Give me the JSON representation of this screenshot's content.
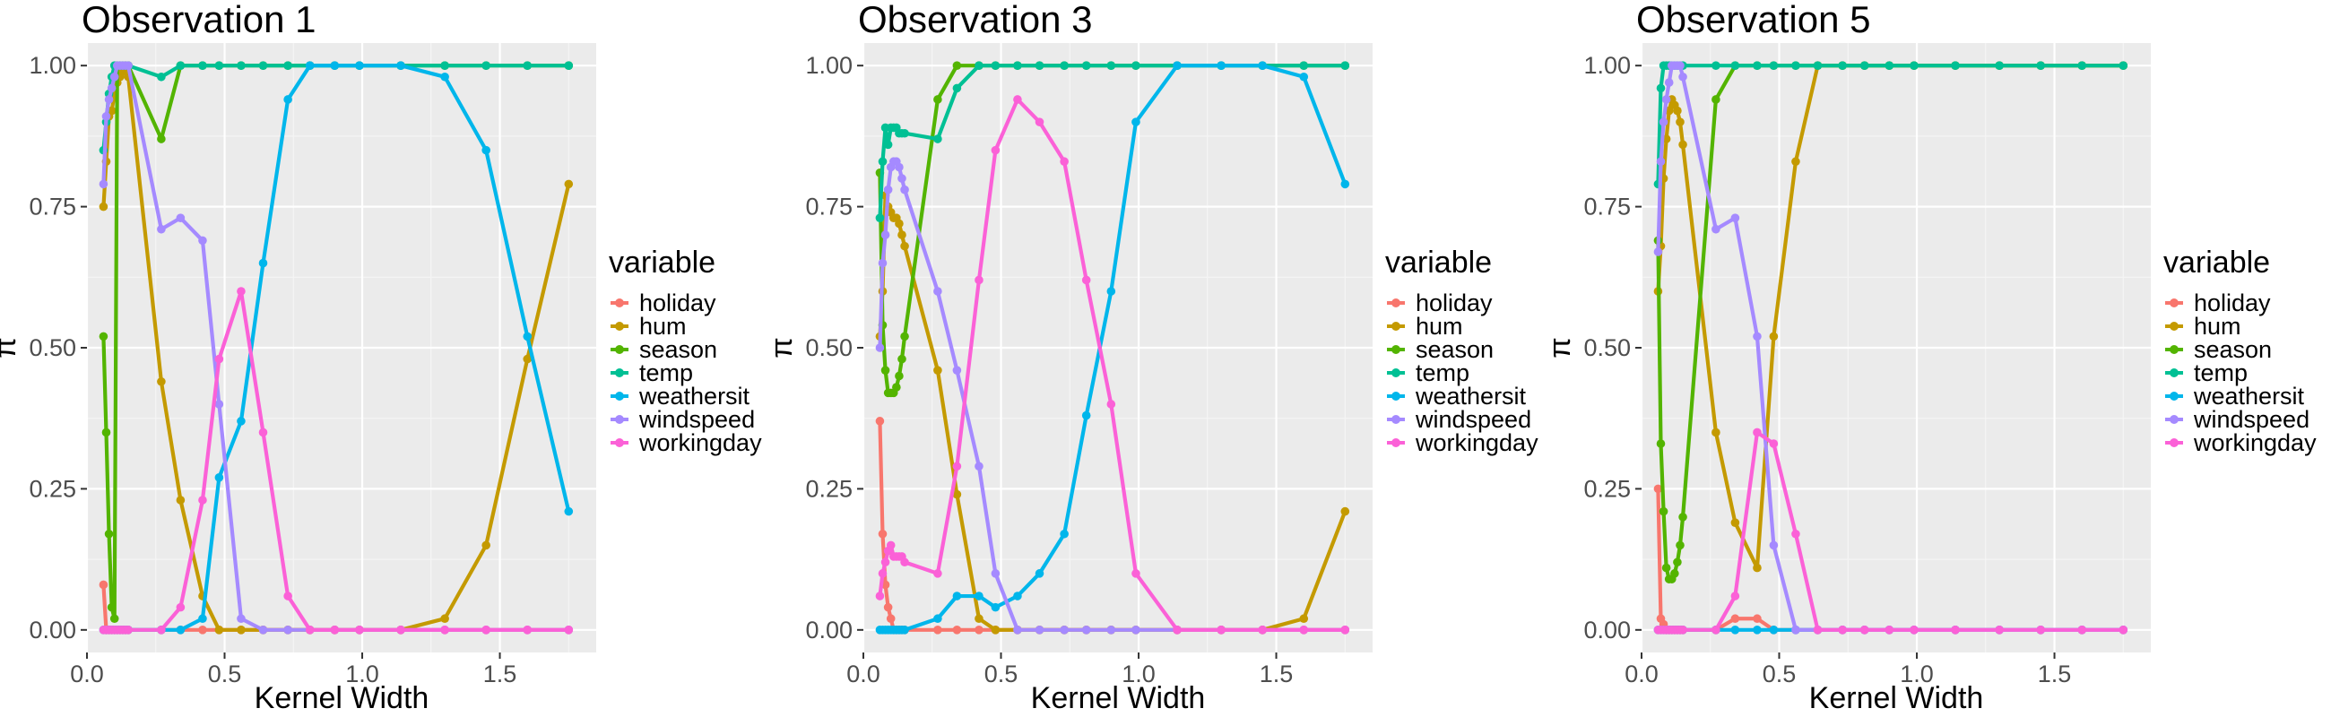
{
  "colors": {
    "panel_bg": "#ebebeb",
    "grid_major": "#ffffff",
    "grid_minor": "#f5f5f5",
    "holiday": "#F8766D",
    "hum": "#C49A00",
    "season": "#53B400",
    "temp": "#00C094",
    "weathersit": "#00B6EB",
    "windspeed": "#A58AFF",
    "workingday": "#FB61D7"
  },
  "chart_data": [
    {
      "type": "line",
      "title": "Observation 1",
      "xlabel": "Kernel Width",
      "ylabel": "π",
      "xlim": [
        0,
        1.85
      ],
      "ylim": [
        -0.04,
        1.04
      ],
      "x_ticks": [
        "0.0",
        "0.5",
        "1.0",
        "1.5"
      ],
      "y_ticks": [
        "0.00",
        "0.25",
        "0.50",
        "0.75",
        "1.00"
      ],
      "legend_title": "variable",
      "legend_position": "right",
      "grid": true,
      "x": [
        0.06,
        0.07,
        0.08,
        0.09,
        0.1,
        0.11,
        0.12,
        0.13,
        0.14,
        0.15,
        0.27,
        0.34,
        0.42,
        0.48,
        0.56,
        0.64,
        0.73,
        0.81,
        0.9,
        0.99,
        1.14,
        1.3,
        1.45,
        1.6,
        1.75
      ],
      "series": [
        {
          "name": "holiday",
          "values": [
            0.08,
            0,
            0,
            0,
            0,
            0,
            0,
            0,
            0,
            0,
            0,
            0,
            0,
            0,
            0,
            0,
            0,
            0,
            0,
            0,
            0,
            0,
            0,
            0,
            0
          ]
        },
        {
          "name": "hum",
          "values": [
            0.75,
            0.83,
            0.91,
            0.92,
            0.95,
            0.97,
            0.98,
            0.99,
            1.0,
            0.98,
            0.44,
            0.23,
            0.06,
            0,
            0,
            0,
            0,
            0,
            0,
            0,
            0,
            0.02,
            0.15,
            0.48,
            0.79
          ]
        },
        {
          "name": "season",
          "values": [
            0.52,
            0.35,
            0.17,
            0.04,
            0.02,
            1.0,
            1.0,
            1.0,
            1.0,
            1.0,
            0.87,
            1.0,
            1.0,
            1.0,
            1.0,
            1.0,
            1.0,
            1.0,
            1.0,
            1.0,
            1.0,
            1.0,
            1.0,
            1.0,
            1.0
          ]
        },
        {
          "name": "temp",
          "values": [
            0.85,
            0.9,
            0.95,
            0.98,
            1.0,
            1.0,
            1.0,
            1.0,
            1.0,
            1.0,
            0.98,
            1.0,
            1.0,
            1.0,
            1.0,
            1.0,
            1.0,
            1.0,
            1.0,
            1.0,
            1.0,
            1.0,
            1.0,
            1.0,
            1.0
          ]
        },
        {
          "name": "weathersit",
          "values": [
            0,
            0,
            0,
            0,
            0,
            0,
            0,
            0,
            0,
            0,
            0,
            0.0,
            0.02,
            0.27,
            0.37,
            0.65,
            0.94,
            1.0,
            1.0,
            1.0,
            1.0,
            0.98,
            0.85,
            0.52,
            0.21
          ]
        },
        {
          "name": "windspeed",
          "values": [
            0.79,
            0.91,
            0.94,
            0.96,
            0.98,
            1.0,
            1.0,
            1.0,
            1.0,
            1.0,
            0.71,
            0.73,
            0.69,
            0.4,
            0.02,
            0,
            0,
            0,
            0,
            0,
            0,
            0,
            0,
            0,
            0
          ]
        },
        {
          "name": "workingday",
          "values": [
            0,
            0,
            0,
            0,
            0,
            0,
            0,
            0,
            0,
            0,
            0,
            0.04,
            0.23,
            0.48,
            0.6,
            0.35,
            0.06,
            0,
            0,
            0,
            0,
            0,
            0,
            0,
            0
          ]
        }
      ]
    },
    {
      "type": "line",
      "title": "Observation 3",
      "xlabel": "Kernel Width",
      "ylabel": "π",
      "xlim": [
        0,
        1.85
      ],
      "ylim": [
        -0.04,
        1.04
      ],
      "x_ticks": [
        "0.0",
        "0.5",
        "1.0",
        "1.5"
      ],
      "y_ticks": [
        "0.00",
        "0.25",
        "0.50",
        "0.75",
        "1.00"
      ],
      "legend_title": "variable",
      "legend_position": "right",
      "grid": true,
      "x": [
        0.06,
        0.07,
        0.08,
        0.09,
        0.1,
        0.11,
        0.12,
        0.13,
        0.14,
        0.15,
        0.27,
        0.34,
        0.42,
        0.48,
        0.56,
        0.64,
        0.73,
        0.81,
        0.9,
        0.99,
        1.14,
        1.3,
        1.45,
        1.6,
        1.75
      ],
      "series": [
        {
          "name": "holiday",
          "values": [
            0.37,
            0.17,
            0.08,
            0.04,
            0.02,
            0,
            0,
            0,
            0,
            0,
            0,
            0,
            0,
            0,
            0,
            0,
            0,
            0,
            0,
            0,
            0,
            0,
            0,
            0,
            0
          ]
        },
        {
          "name": "hum",
          "values": [
            0.52,
            0.6,
            0.77,
            0.75,
            0.74,
            0.73,
            0.73,
            0.72,
            0.7,
            0.68,
            0.46,
            0.24,
            0.02,
            0,
            0,
            0,
            0,
            0,
            0,
            0,
            0,
            0,
            0,
            0.02,
            0.21
          ]
        },
        {
          "name": "season",
          "values": [
            0.81,
            0.54,
            0.46,
            0.42,
            0.42,
            0.42,
            0.43,
            0.45,
            0.48,
            0.52,
            0.94,
            1.0,
            1.0,
            1.0,
            1.0,
            1.0,
            1.0,
            1.0,
            1.0,
            1.0,
            1.0,
            1.0,
            1.0,
            1.0,
            1.0
          ]
        },
        {
          "name": "temp",
          "values": [
            0.73,
            0.83,
            0.89,
            0.86,
            0.89,
            0.89,
            0.89,
            0.88,
            0.88,
            0.88,
            0.87,
            0.96,
            1.0,
            1.0,
            1.0,
            1.0,
            1.0,
            1.0,
            1.0,
            1.0,
            1.0,
            1.0,
            1.0,
            1.0,
            1.0
          ]
        },
        {
          "name": "weathersit",
          "values": [
            0,
            0,
            0,
            0,
            0,
            0,
            0,
            0,
            0,
            0,
            0.02,
            0.06,
            0.06,
            0.04,
            0.06,
            0.1,
            0.17,
            0.38,
            0.6,
            0.9,
            1.0,
            1.0,
            1.0,
            0.98,
            0.79
          ]
        },
        {
          "name": "windspeed",
          "values": [
            0.5,
            0.65,
            0.7,
            0.78,
            0.82,
            0.83,
            0.83,
            0.82,
            0.8,
            0.78,
            0.6,
            0.46,
            0.29,
            0.1,
            0,
            0,
            0,
            0,
            0,
            0,
            0,
            0,
            0,
            0,
            0
          ]
        },
        {
          "name": "workingday",
          "values": [
            0.06,
            0.1,
            0.12,
            0.14,
            0.15,
            0.13,
            0.13,
            0.13,
            0.13,
            0.12,
            0.1,
            0.29,
            0.62,
            0.85,
            0.94,
            0.9,
            0.83,
            0.62,
            0.4,
            0.1,
            0,
            0,
            0,
            0,
            0
          ]
        }
      ]
    },
    {
      "type": "line",
      "title": "Observation 5",
      "xlabel": "Kernel Width",
      "ylabel": "π",
      "xlim": [
        0,
        1.85
      ],
      "ylim": [
        -0.04,
        1.04
      ],
      "x_ticks": [
        "0.0",
        "0.5",
        "1.0",
        "1.5"
      ],
      "y_ticks": [
        "0.00",
        "0.25",
        "0.50",
        "0.75",
        "1.00"
      ],
      "legend_title": "variable",
      "legend_position": "right",
      "grid": true,
      "x": [
        0.06,
        0.07,
        0.08,
        0.09,
        0.1,
        0.11,
        0.12,
        0.13,
        0.14,
        0.15,
        0.27,
        0.34,
        0.42,
        0.48,
        0.56,
        0.64,
        0.73,
        0.81,
        0.9,
        0.99,
        1.14,
        1.3,
        1.45,
        1.6,
        1.75
      ],
      "series": [
        {
          "name": "holiday",
          "values": [
            0.25,
            0.02,
            0.01,
            0,
            0,
            0,
            0,
            0,
            0,
            0,
            0,
            0.02,
            0.02,
            0,
            0,
            0,
            0,
            0,
            0,
            0,
            0,
            0,
            0,
            0,
            0
          ]
        },
        {
          "name": "hum",
          "values": [
            0.6,
            0.68,
            0.8,
            0.87,
            0.92,
            0.94,
            0.93,
            0.92,
            0.9,
            0.86,
            0.35,
            0.19,
            0.11,
            0.52,
            0.83,
            1.0,
            1.0,
            1.0,
            1.0,
            1.0,
            1.0,
            1.0,
            1.0,
            1.0,
            1.0
          ]
        },
        {
          "name": "season",
          "values": [
            0.69,
            0.33,
            0.21,
            0.11,
            0.09,
            0.09,
            0.1,
            0.12,
            0.15,
            0.2,
            0.94,
            1.0,
            1.0,
            1.0,
            1.0,
            1.0,
            1.0,
            1.0,
            1.0,
            1.0,
            1.0,
            1.0,
            1.0,
            1.0,
            1.0
          ]
        },
        {
          "name": "temp",
          "values": [
            0.79,
            0.96,
            1.0,
            1.0,
            1.0,
            1.0,
            1.0,
            1.0,
            1.0,
            1.0,
            1.0,
            1.0,
            1.0,
            1.0,
            1.0,
            1.0,
            1.0,
            1.0,
            1.0,
            1.0,
            1.0,
            1.0,
            1.0,
            1.0,
            1.0
          ]
        },
        {
          "name": "weathersit",
          "values": [
            0,
            0,
            0,
            0,
            0,
            0,
            0,
            0,
            0,
            0,
            0,
            0,
            0,
            0,
            0,
            0,
            0,
            0,
            0,
            0,
            0,
            0,
            0,
            0,
            0
          ]
        },
        {
          "name": "windspeed",
          "values": [
            0.67,
            0.83,
            0.9,
            0.94,
            0.97,
            1.0,
            1.0,
            1.0,
            1.0,
            0.98,
            0.71,
            0.73,
            0.52,
            0.15,
            0,
            0,
            0,
            0,
            0,
            0,
            0,
            0,
            0,
            0,
            0
          ]
        },
        {
          "name": "workingday",
          "values": [
            0,
            0,
            0,
            0,
            0,
            0,
            0,
            0,
            0,
            0,
            0,
            0.06,
            0.35,
            0.33,
            0.17,
            0,
            0,
            0,
            0,
            0,
            0,
            0,
            0,
            0,
            0
          ]
        }
      ]
    }
  ]
}
